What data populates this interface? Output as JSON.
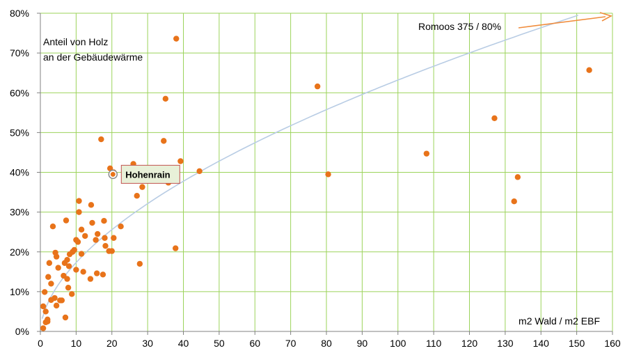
{
  "chart_data": {
    "type": "scatter",
    "title": "",
    "ylabel_lines": [
      "Anteil von Holz",
      "an der Gebäudewärme"
    ],
    "xlabel": "m2 Wald / m2 EBF",
    "xlim": [
      0,
      160
    ],
    "ylim": [
      0,
      80
    ],
    "x_ticks": [
      0,
      10,
      20,
      30,
      40,
      50,
      60,
      70,
      80,
      90,
      100,
      110,
      120,
      130,
      140,
      150,
      160
    ],
    "y_ticks": [
      0,
      10,
      20,
      30,
      40,
      50,
      60,
      70,
      80
    ],
    "x_tick_labels": [
      "0",
      "10",
      "20",
      "30",
      "40",
      "50",
      "60",
      "70",
      "80",
      "90",
      "100",
      "110",
      "120",
      "130",
      "140",
      "150",
      "160"
    ],
    "y_tick_labels": [
      "0%",
      "10%",
      "20%",
      "30%",
      "40%",
      "50%",
      "60%",
      "70%",
      "80%"
    ],
    "grid": true,
    "colors": {
      "points": "#E8731A",
      "grid": "#9BD35A",
      "trend": "#B8CCE4",
      "arrow": "#F08C3C",
      "highlight_fill": "#E8F0D8",
      "highlight_border": "#C0504D"
    },
    "points": [
      [
        0.8,
        0.8
      ],
      [
        0.8,
        6.3
      ],
      [
        1.2,
        9.9
      ],
      [
        1.5,
        5.0
      ],
      [
        1.5,
        2.3
      ],
      [
        2.0,
        2.5
      ],
      [
        2.0,
        3.0
      ],
      [
        2.2,
        13.7
      ],
      [
        2.5,
        17.2
      ],
      [
        3.0,
        12.0
      ],
      [
        3.0,
        7.9
      ],
      [
        3.5,
        26.4
      ],
      [
        4.0,
        8.4
      ],
      [
        4.2,
        19.8
      ],
      [
        4.5,
        6.5
      ],
      [
        4.5,
        18.8
      ],
      [
        5.0,
        16.0
      ],
      [
        5.5,
        7.8
      ],
      [
        6.0,
        7.8
      ],
      [
        6.5,
        14.0
      ],
      [
        6.8,
        17.2
      ],
      [
        7.0,
        3.5
      ],
      [
        7.2,
        27.9
      ],
      [
        7.5,
        18.0
      ],
      [
        7.5,
        13.2
      ],
      [
        7.8,
        11.0
      ],
      [
        8.0,
        16.4
      ],
      [
        8.2,
        19.4
      ],
      [
        8.8,
        9.4
      ],
      [
        9.0,
        20.0
      ],
      [
        9.5,
        20.5
      ],
      [
        10.0,
        23.0
      ],
      [
        10.0,
        15.5
      ],
      [
        10.5,
        22.5
      ],
      [
        10.8,
        30.0
      ],
      [
        10.8,
        32.8
      ],
      [
        11.5,
        25.6
      ],
      [
        11.5,
        19.5
      ],
      [
        12.0,
        15.0
      ],
      [
        12.5,
        24.0
      ],
      [
        14.0,
        13.2
      ],
      [
        14.2,
        31.8
      ],
      [
        14.5,
        27.3
      ],
      [
        15.5,
        23.0
      ],
      [
        15.8,
        14.6
      ],
      [
        16.0,
        24.5
      ],
      [
        17.0,
        48.3
      ],
      [
        17.5,
        14.3
      ],
      [
        17.8,
        27.8
      ],
      [
        18.0,
        23.5
      ],
      [
        18.2,
        21.5
      ],
      [
        19.2,
        20.2
      ],
      [
        19.5,
        41.0
      ],
      [
        20.0,
        20.2
      ],
      [
        20.5,
        23.5
      ],
      [
        20.5,
        40.0
      ],
      [
        22.5,
        26.4
      ],
      [
        26.0,
        42.1
      ],
      [
        26.5,
        40.0
      ],
      [
        27.0,
        34.1
      ],
      [
        27.5,
        38.8
      ],
      [
        27.8,
        17.0
      ],
      [
        28.5,
        36.3
      ],
      [
        34.5,
        47.9
      ],
      [
        35.0,
        58.5
      ],
      [
        35.5,
        38.2
      ],
      [
        35.8,
        37.4
      ],
      [
        37.8,
        20.9
      ],
      [
        38.0,
        73.6
      ],
      [
        39.2,
        42.8
      ],
      [
        44.5,
        40.3
      ],
      [
        77.5,
        61.6
      ],
      [
        80.5,
        39.5
      ],
      [
        108.0,
        44.7
      ],
      [
        127.0,
        53.6
      ],
      [
        132.5,
        32.7
      ],
      [
        133.5,
        38.8
      ],
      [
        153.5,
        65.7
      ]
    ],
    "highlight": {
      "x": 20.3,
      "y": 39.5,
      "label": "Hohenrain"
    },
    "trendline": {
      "type": "power",
      "a": 4.75,
      "b": 0.562,
      "x_range": [
        0.5,
        150.4
      ]
    },
    "annotation": {
      "text": "Romoos 375 / 80%",
      "x": 375,
      "y": 80
    }
  }
}
